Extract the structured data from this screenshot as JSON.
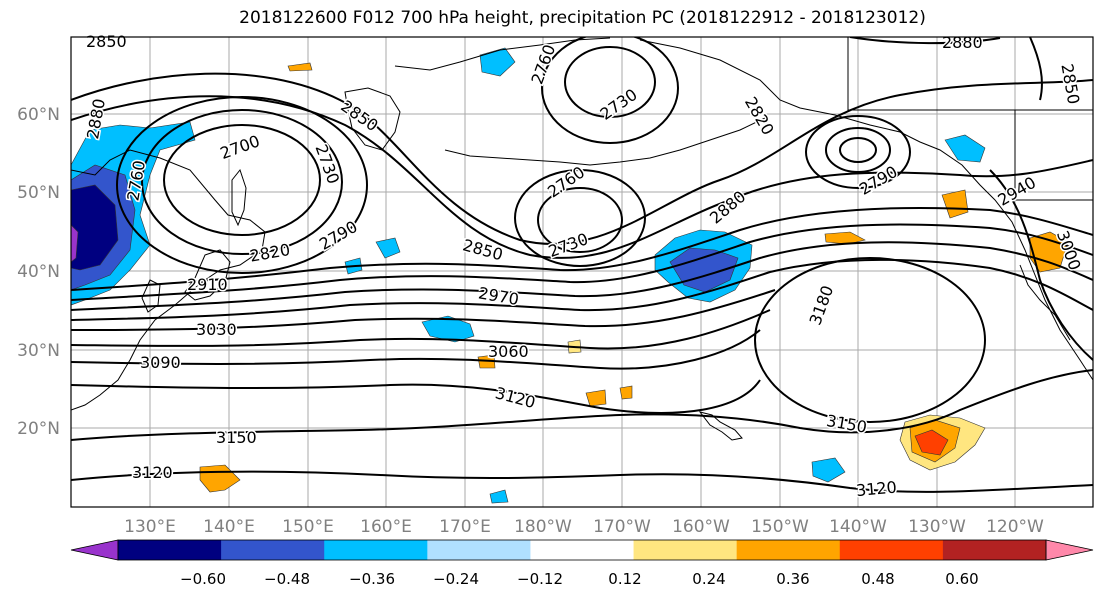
{
  "title": "2018122600 F012 700 hPa height, precipitation PC (2018122912 - 2018123012)",
  "lat_labels": [
    "60°N",
    "50°N",
    "40°N",
    "30°N",
    "20°N"
  ],
  "lon_labels": [
    "130°E",
    "140°E",
    "150°E",
    "160°E",
    "170°E",
    "180°W",
    "170°W",
    "160°W",
    "150°W",
    "140°W",
    "130°W",
    "120°W"
  ],
  "contour_labels": [
    "2850",
    "2880",
    "2760",
    "2730",
    "2850",
    "2700",
    "2730",
    "2790",
    "2820",
    "2760",
    "2730",
    "2880",
    "2880",
    "2790",
    "2850",
    "2940",
    "3000",
    "2850",
    "2910",
    "2970",
    "3030",
    "3060",
    "3090",
    "3180",
    "3120",
    "3150",
    "3150",
    "3120",
    "3120",
    "2760",
    "2820"
  ],
  "colorbar": {
    "ticks": [
      "−0.60",
      "−0.48",
      "−0.36",
      "−0.24",
      "−0.12",
      "0.12",
      "0.24",
      "0.36",
      "0.48",
      "0.60"
    ],
    "colors": [
      "#9933cc",
      "#000080",
      "#3355cc",
      "#00bfff",
      "#b0e0ff",
      "#ffffff",
      "#ffe680",
      "#ffa500",
      "#ff4000",
      "#b22222",
      "#ff88aa"
    ]
  },
  "colors": {
    "neg_light": "#00bfff",
    "neg_mid": "#3355cc",
    "neg_dark": "#000080",
    "pos_light": "#ffe680",
    "pos_mid": "#ffa500",
    "pos_dark": "#ff4000"
  }
}
